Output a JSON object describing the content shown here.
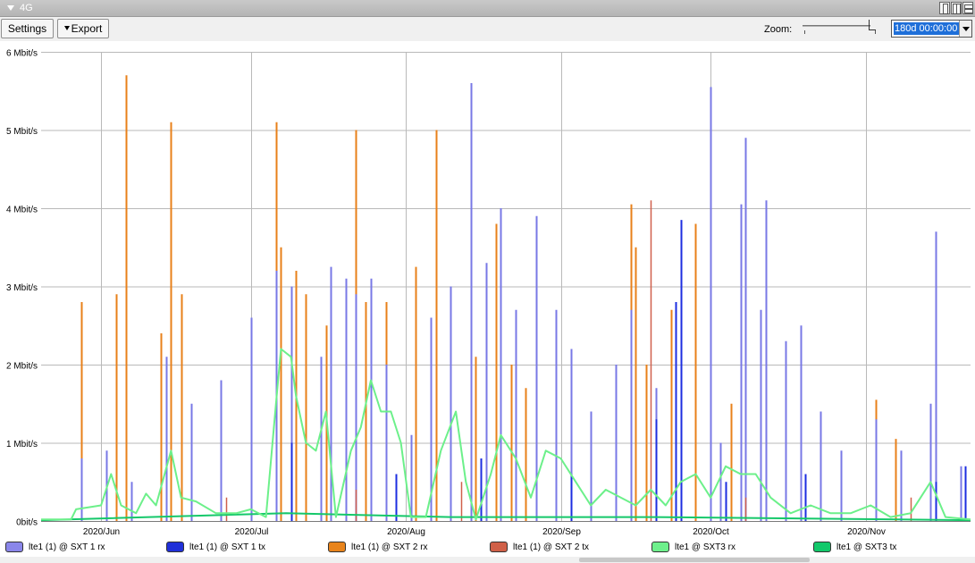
{
  "window": {
    "title": "4G"
  },
  "toolbar": {
    "settings_label": "Settings",
    "export_label": "Export",
    "zoom_label": "Zoom:",
    "zoom_value": "180d 00:00:00"
  },
  "colors": {
    "grid": "#b9b9b9",
    "sxt1_rx": "#7878e6",
    "sxt1_tx": "#1c2ee0",
    "sxt2_rx": "#e8801a",
    "sxt2_tx": "#d0604c",
    "sxt3_rx": "#6cf08a",
    "sxt3_tx": "#15c86a"
  },
  "legend": [
    {
      "label": "lte1 (1) @ SXT 1 rx",
      "color": "#8a86ea"
    },
    {
      "label": "lte1 (1) @ SXT 1 tx",
      "color": "#2030d8"
    },
    {
      "label": "lte1 (1) @ SXT 2 rx",
      "color": "#e8841c"
    },
    {
      "label": "lte1 (1) @ SXT 2 tx",
      "color": "#d06048"
    },
    {
      "label": "lte1 @ SXT3 rx",
      "color": "#6ef08c"
    },
    {
      "label": "lte1 @ SXT3 tx",
      "color": "#12c86a"
    }
  ],
  "chart_data": {
    "type": "line",
    "y_unit": "Mbit/s",
    "ylim": [
      0,
      6
    ],
    "y_ticks": [
      {
        "value": 0,
        "label": "0bit/s"
      },
      {
        "value": 1,
        "label": "1 Mbit/s"
      },
      {
        "value": 2,
        "label": "2 Mbit/s"
      },
      {
        "value": 3,
        "label": "3 Mbit/s"
      },
      {
        "value": 4,
        "label": "4 Mbit/s"
      },
      {
        "value": 5,
        "label": "5 Mbit/s"
      },
      {
        "value": 6,
        "label": "6 Mbit/s"
      }
    ],
    "x_range": [
      "2020-05-20",
      "2020-11-22"
    ],
    "x_ticks": [
      {
        "date": "2020-06-01",
        "label": "2020/Jun"
      },
      {
        "date": "2020-07-01",
        "label": "2020/Jul"
      },
      {
        "date": "2020-08-01",
        "label": "2020/Aug"
      },
      {
        "date": "2020-09-01",
        "label": "2020/Sep"
      },
      {
        "date": "2020-10-01",
        "label": "2020/Oct"
      },
      {
        "date": "2020-11-01",
        "label": "2020/Nov"
      }
    ],
    "grid": true,
    "series": [
      {
        "name": "lte1 (1) @ SXT 1 rx",
        "points": [
          [
            "2020-05-28",
            0.8
          ],
          [
            "2020-06-02",
            0.9
          ],
          [
            "2020-06-07",
            0.5
          ],
          [
            "2020-06-14",
            2.1
          ],
          [
            "2020-06-19",
            1.5
          ],
          [
            "2020-06-25",
            1.8
          ],
          [
            "2020-07-01",
            2.6
          ],
          [
            "2020-07-06",
            3.2
          ],
          [
            "2020-07-09",
            3.0
          ],
          [
            "2020-07-15",
            2.1
          ],
          [
            "2020-07-17",
            3.25
          ],
          [
            "2020-07-20",
            3.1
          ],
          [
            "2020-07-22",
            2.9
          ],
          [
            "2020-07-25",
            3.1
          ],
          [
            "2020-07-28",
            2.0
          ],
          [
            "2020-08-02",
            1.1
          ],
          [
            "2020-08-06",
            2.6
          ],
          [
            "2020-08-10",
            3.0
          ],
          [
            "2020-08-14",
            5.6
          ],
          [
            "2020-08-17",
            3.3
          ],
          [
            "2020-08-20",
            4.0
          ],
          [
            "2020-08-23",
            2.7
          ],
          [
            "2020-08-27",
            3.9
          ],
          [
            "2020-08-31",
            2.7
          ],
          [
            "2020-09-03",
            2.2
          ],
          [
            "2020-09-07",
            1.4
          ],
          [
            "2020-09-12",
            2.0
          ],
          [
            "2020-09-15",
            2.7
          ],
          [
            "2020-09-20",
            1.7
          ],
          [
            "2020-09-25",
            2.0
          ],
          [
            "2020-10-01",
            5.55
          ],
          [
            "2020-10-03",
            1.0
          ],
          [
            "2020-10-07",
            4.05
          ],
          [
            "2020-10-08",
            4.9
          ],
          [
            "2020-10-11",
            2.7
          ],
          [
            "2020-10-12",
            4.1
          ],
          [
            "2020-10-16",
            2.3
          ],
          [
            "2020-10-19",
            2.5
          ],
          [
            "2020-10-23",
            1.4
          ],
          [
            "2020-10-27",
            0.9
          ],
          [
            "2020-11-03",
            1.3
          ],
          [
            "2020-11-08",
            0.9
          ],
          [
            "2020-11-14",
            1.5
          ],
          [
            "2020-11-15",
            3.7
          ],
          [
            "2020-11-20",
            0.7
          ]
        ]
      },
      {
        "name": "lte1 (1) @ SXT 1 tx",
        "points": [
          [
            "2020-07-09",
            1.0
          ],
          [
            "2020-07-30",
            0.6
          ],
          [
            "2020-08-16",
            0.8
          ],
          [
            "2020-09-03",
            0.6
          ],
          [
            "2020-09-20",
            1.3
          ],
          [
            "2020-09-24",
            2.8
          ],
          [
            "2020-09-25",
            3.85
          ],
          [
            "2020-10-04",
            0.5
          ],
          [
            "2020-10-20",
            0.6
          ],
          [
            "2020-11-15",
            0.5
          ],
          [
            "2020-11-21",
            0.7
          ]
        ]
      },
      {
        "name": "lte1 (1) @ SXT 2 rx",
        "points": [
          [
            "2020-05-28",
            2.8
          ],
          [
            "2020-06-04",
            2.9
          ],
          [
            "2020-06-06",
            5.7
          ],
          [
            "2020-06-13",
            2.4
          ],
          [
            "2020-06-15",
            5.1
          ],
          [
            "2020-06-17",
            2.9
          ],
          [
            "2020-07-06",
            5.1
          ],
          [
            "2020-07-07",
            3.5
          ],
          [
            "2020-07-10",
            3.2
          ],
          [
            "2020-07-12",
            2.9
          ],
          [
            "2020-07-16",
            2.5
          ],
          [
            "2020-07-22",
            5.0
          ],
          [
            "2020-07-24",
            2.8
          ],
          [
            "2020-07-28",
            2.8
          ],
          [
            "2020-08-03",
            3.25
          ],
          [
            "2020-08-07",
            5.0
          ],
          [
            "2020-08-10",
            2.9
          ],
          [
            "2020-08-15",
            2.1
          ],
          [
            "2020-08-19",
            3.8
          ],
          [
            "2020-08-22",
            2.0
          ],
          [
            "2020-08-25",
            1.7
          ],
          [
            "2020-09-15",
            4.05
          ],
          [
            "2020-09-16",
            3.5
          ],
          [
            "2020-09-18",
            2.0
          ],
          [
            "2020-09-23",
            2.7
          ],
          [
            "2020-09-28",
            3.8
          ],
          [
            "2020-10-05",
            1.5
          ],
          [
            "2020-10-11",
            0.9
          ],
          [
            "2020-11-03",
            1.55
          ],
          [
            "2020-11-07",
            1.05
          ],
          [
            "2020-11-14",
            1.0
          ]
        ]
      },
      {
        "name": "lte1 (1) @ SXT 2 tx",
        "points": [
          [
            "2020-06-26",
            0.3
          ],
          [
            "2020-07-22",
            0.4
          ],
          [
            "2020-08-12",
            0.5
          ],
          [
            "2020-09-19",
            4.1
          ],
          [
            "2020-10-08",
            0.3
          ],
          [
            "2020-11-10",
            0.3
          ]
        ]
      },
      {
        "name": "lte1 @ SXT3 rx",
        "points": [
          [
            "2020-05-20",
            0.02
          ],
          [
            "2020-05-26",
            0.02
          ],
          [
            "2020-05-27",
            0.15
          ],
          [
            "2020-06-01",
            0.2
          ],
          [
            "2020-06-03",
            0.6
          ],
          [
            "2020-06-05",
            0.2
          ],
          [
            "2020-06-08",
            0.1
          ],
          [
            "2020-06-10",
            0.35
          ],
          [
            "2020-06-12",
            0.2
          ],
          [
            "2020-06-15",
            0.9
          ],
          [
            "2020-06-17",
            0.3
          ],
          [
            "2020-06-20",
            0.25
          ],
          [
            "2020-06-24",
            0.1
          ],
          [
            "2020-06-28",
            0.1
          ],
          [
            "2020-07-01",
            0.15
          ],
          [
            "2020-07-04",
            0.05
          ],
          [
            "2020-07-06",
            1.5
          ],
          [
            "2020-07-07",
            2.2
          ],
          [
            "2020-07-09",
            2.1
          ],
          [
            "2020-07-10",
            1.6
          ],
          [
            "2020-07-12",
            1.0
          ],
          [
            "2020-07-14",
            0.9
          ],
          [
            "2020-07-16",
            1.4
          ],
          [
            "2020-07-18",
            0.05
          ],
          [
            "2020-07-21",
            0.9
          ],
          [
            "2020-07-23",
            1.2
          ],
          [
            "2020-07-25",
            1.8
          ],
          [
            "2020-07-27",
            1.4
          ],
          [
            "2020-07-29",
            1.4
          ],
          [
            "2020-07-31",
            1.0
          ],
          [
            "2020-08-02",
            0.05
          ],
          [
            "2020-08-05",
            0.05
          ],
          [
            "2020-08-08",
            0.9
          ],
          [
            "2020-08-11",
            1.4
          ],
          [
            "2020-08-13",
            0.5
          ],
          [
            "2020-08-15",
            0.02
          ],
          [
            "2020-08-18",
            0.6
          ],
          [
            "2020-08-20",
            1.1
          ],
          [
            "2020-08-23",
            0.8
          ],
          [
            "2020-08-26",
            0.3
          ],
          [
            "2020-08-29",
            0.9
          ],
          [
            "2020-09-01",
            0.8
          ],
          [
            "2020-09-04",
            0.5
          ],
          [
            "2020-09-07",
            0.2
          ],
          [
            "2020-09-10",
            0.4
          ],
          [
            "2020-09-13",
            0.3
          ],
          [
            "2020-09-16",
            0.2
          ],
          [
            "2020-09-19",
            0.4
          ],
          [
            "2020-09-22",
            0.2
          ],
          [
            "2020-09-25",
            0.5
          ],
          [
            "2020-09-28",
            0.6
          ],
          [
            "2020-10-01",
            0.3
          ],
          [
            "2020-10-04",
            0.7
          ],
          [
            "2020-10-07",
            0.6
          ],
          [
            "2020-10-10",
            0.6
          ],
          [
            "2020-10-13",
            0.3
          ],
          [
            "2020-10-17",
            0.1
          ],
          [
            "2020-10-21",
            0.2
          ],
          [
            "2020-10-25",
            0.1
          ],
          [
            "2020-10-29",
            0.1
          ],
          [
            "2020-11-02",
            0.2
          ],
          [
            "2020-11-06",
            0.05
          ],
          [
            "2020-11-10",
            0.1
          ],
          [
            "2020-11-14",
            0.5
          ],
          [
            "2020-11-17",
            0.05
          ],
          [
            "2020-11-22",
            0.02
          ]
        ]
      },
      {
        "name": "lte1 @ SXT3 tx",
        "points": [
          [
            "2020-05-20",
            0.01
          ],
          [
            "2020-07-08",
            0.1
          ],
          [
            "2020-08-10",
            0.05
          ],
          [
            "2020-09-20",
            0.05
          ],
          [
            "2020-11-22",
            0.01
          ]
        ]
      }
    ]
  }
}
